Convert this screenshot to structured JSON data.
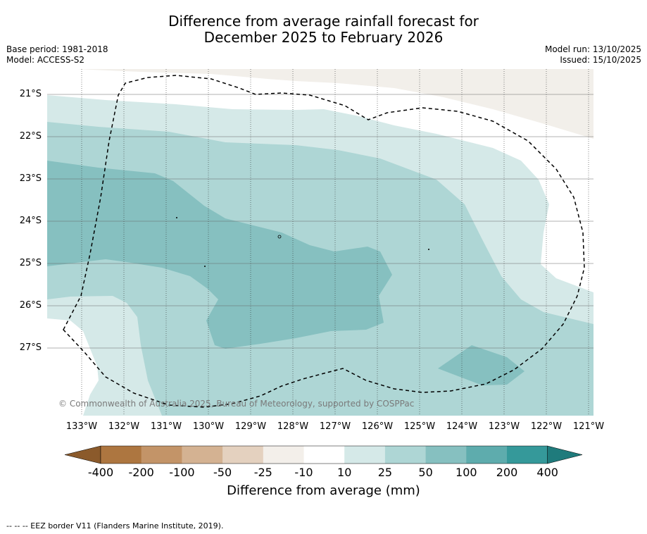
{
  "title": {
    "line1": "Difference from average rainfall forecast for",
    "line2": "December 2025 to February 2026"
  },
  "meta": {
    "base_period": "Base period: 1981-2018",
    "model": "Model: ACCESS-S2",
    "model_run": "Model run: 13/10/2025",
    "issued": "Issued: 15/10/2025"
  },
  "map": {
    "lat_labels": [
      "21°S",
      "22°S",
      "23°S",
      "24°S",
      "25°S",
      "26°S",
      "27°S"
    ],
    "lon_labels": [
      "133°W",
      "132°W",
      "131°W",
      "130°W",
      "129°W",
      "128°W",
      "127°W",
      "126°W",
      "125°W",
      "124°W",
      "123°W",
      "122°W",
      "121°W"
    ],
    "copyright": "© Commonwealth of Australia 2025, Bureau of Meteorology, supported by COSPPac",
    "colors": {
      "land": "#f2efea",
      "c10_25": "#d5e9e8",
      "c25_50": "#aed6d5",
      "c50_100": "#86c0c0"
    }
  },
  "colorbar": {
    "labels": [
      "-400",
      "-200",
      "-100",
      "-50",
      "-25",
      "-10",
      "10",
      "25",
      "50",
      "100",
      "200",
      "400"
    ],
    "colors": [
      "#8b5a2b",
      "#ad7640",
      "#c39468",
      "#d4b292",
      "#e4d1bf",
      "#f3efea",
      "#ffffff",
      "#d5e9e8",
      "#aed6d5",
      "#86c0c0",
      "#5eacad",
      "#35999a",
      "#1f7b7c"
    ],
    "title": "Difference from average (mm)"
  },
  "footnote": "--  --  -- EEZ border V11 (Flanders Marine Institute, 2019)."
}
